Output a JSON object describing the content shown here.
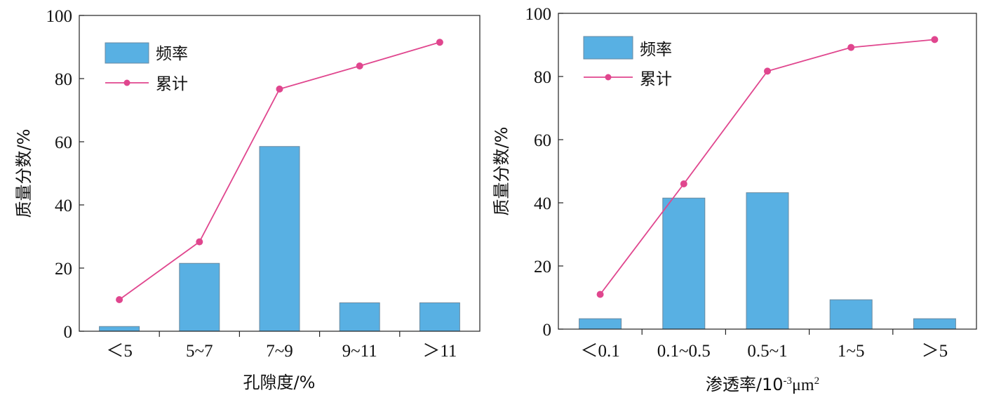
{
  "colors": {
    "bar": "#58b0e3",
    "bar_stroke": "#6a8aa0",
    "line": "#e0468e",
    "axis": "#222222"
  },
  "chart_data": [
    {
      "type": "bar",
      "xlabel": "孔隙度/%",
      "ylabel": "质量分数/%",
      "ylim": [
        0,
        100
      ],
      "yticks": [
        "0",
        "20",
        "40",
        "60",
        "80",
        "100"
      ],
      "categories": [
        "＜5",
        "5~7",
        "7~9",
        "9~11",
        "＞11"
      ],
      "legend_position": "top-left",
      "series": [
        {
          "name": "频率",
          "type": "bar",
          "values": [
            1.5,
            21.5,
            58.5,
            9,
            9
          ]
        },
        {
          "name": "累计",
          "type": "line",
          "values": [
            10,
            28.3,
            76.7,
            84,
            91.5
          ]
        }
      ]
    },
    {
      "type": "bar",
      "xlabel": "渗透率/10",
      "xlabel_sup1": "-3",
      "xlabel_unit": "μm",
      "xlabel_sup2": "2",
      "ylabel": "质量分数/%",
      "ylim": [
        0,
        100
      ],
      "yticks": [
        "0",
        "20",
        "40",
        "60",
        "80",
        "100"
      ],
      "categories": [
        "＜0.1",
        "0.1~0.5",
        "0.5~1",
        "1~5",
        "＞5"
      ],
      "legend_position": "top-left",
      "series": [
        {
          "name": "频率",
          "type": "bar",
          "values": [
            3.3,
            41.5,
            43.2,
            9.3,
            3.3
          ]
        },
        {
          "name": "累计",
          "type": "line",
          "values": [
            11,
            46,
            81.7,
            89.2,
            91.7
          ]
        }
      ]
    }
  ]
}
